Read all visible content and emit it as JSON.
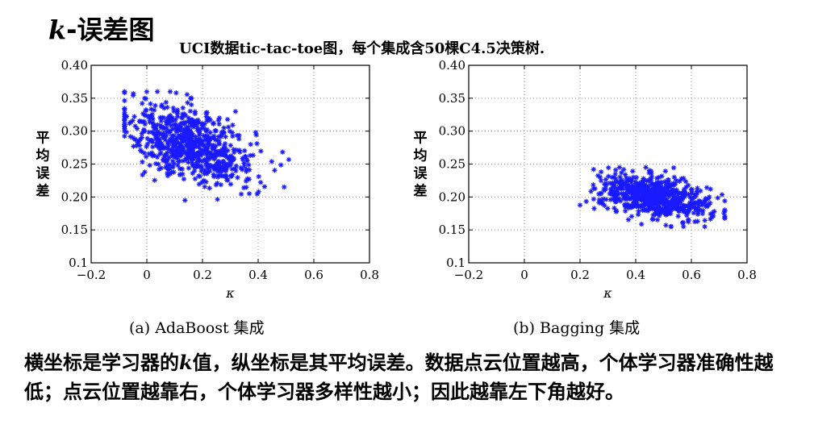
{
  "header": {
    "title_k": "k",
    "title_rest": "-误差图",
    "subtitle": "UCI数据tic-tac-toe图，每个集成含50棵C4.5决策树."
  },
  "chart_data": [
    {
      "type": "scatter",
      "caption": "(a) AdaBoost 集成",
      "xlabel": "κ",
      "ylabel": "平均误差",
      "xlim": [
        -0.2,
        0.8
      ],
      "ylim": [
        0.1,
        0.4
      ],
      "xticks": [
        "−0.2",
        "0",
        "0.2",
        "0.4",
        "0.6",
        "0.8"
      ],
      "yticks": [
        "0.1",
        "0.15",
        "0.20",
        "0.25",
        "0.30",
        "0.35",
        "0.40"
      ],
      "grid": true,
      "color": "#1a1aff",
      "marker": "asterisk",
      "cloud": {
        "center_x": 0.16,
        "center_y": 0.28,
        "x_range": [
          -0.08,
          0.51
        ],
        "y_range": [
          0.195,
          0.36
        ],
        "correlation": "negative"
      }
    },
    {
      "type": "scatter",
      "caption": "(b) Bagging 集成",
      "xlabel": "κ",
      "ylabel": "平均误差",
      "xlim": [
        -0.2,
        0.8
      ],
      "ylim": [
        0.1,
        0.4
      ],
      "xticks": [
        "−0.2",
        "0",
        "0.2",
        "0.4",
        "0.6",
        "0.8"
      ],
      "yticks": [
        "0.1",
        "0.15",
        "0.20",
        "0.25",
        "0.30",
        "0.35",
        "0.40"
      ],
      "grid": true,
      "color": "#1a1aff",
      "marker": "asterisk",
      "cloud": {
        "center_x": 0.47,
        "center_y": 0.2,
        "x_range": [
          0.2,
          0.72
        ],
        "y_range": [
          0.155,
          0.245
        ],
        "correlation": "negative"
      }
    }
  ],
  "body_text": {
    "line_part1": "横坐标是学习器的",
    "k": "k",
    "line_part2": "值，纵坐标是其平均误差。数据点云位置越高，个体学习器准确性越低；点云位置越靠右，个体学习器多样性越小；因此越靠左下角越好。"
  }
}
